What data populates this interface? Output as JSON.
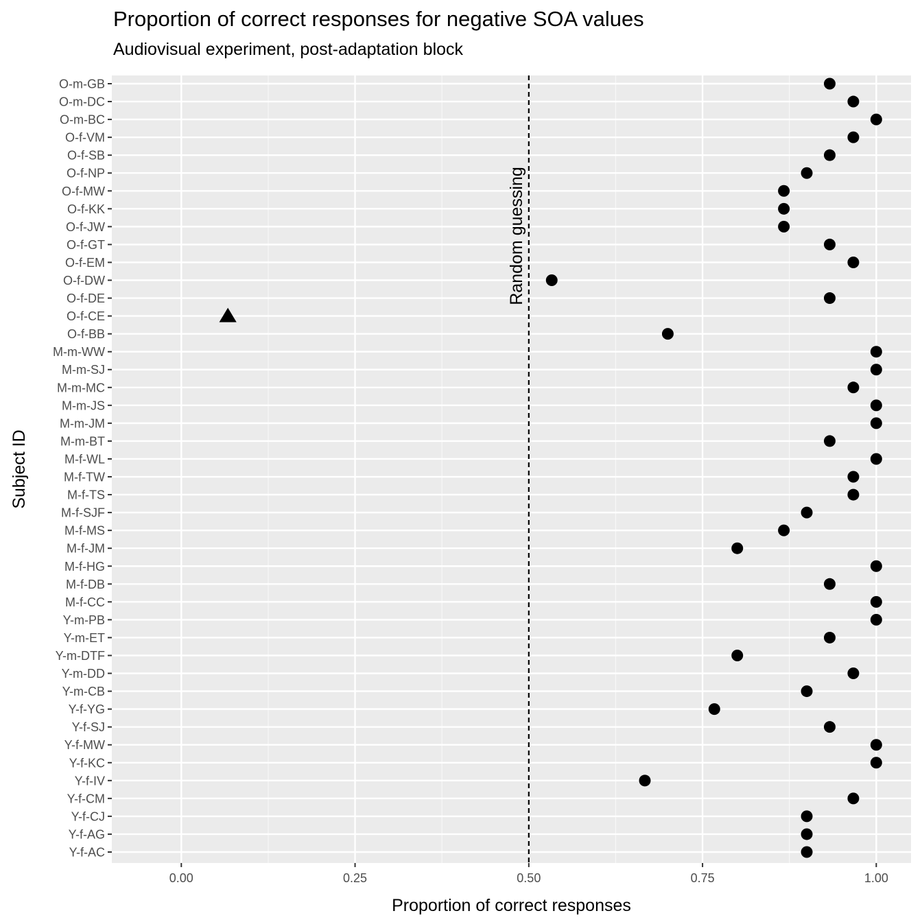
{
  "chart_data": {
    "type": "scatter",
    "title": "Proportion of correct responses for negative SOA values",
    "subtitle": "Audiovisual experiment, post-adaptation block",
    "xlabel": "Proportion of correct responses",
    "ylabel": "Subject ID",
    "xlim": [
      -0.1,
      1.05
    ],
    "x_ticks": [
      "0.00",
      "0.25",
      "0.50",
      "0.75",
      "1.00"
    ],
    "grid": true,
    "reference_line": {
      "x": 0.5,
      "style": "dashed",
      "label": "Random guessing"
    },
    "categories": [
      "O-m-GB",
      "O-m-DC",
      "O-m-BC",
      "O-f-VM",
      "O-f-SB",
      "O-f-NP",
      "O-f-MW",
      "O-f-KK",
      "O-f-JW",
      "O-f-GT",
      "O-f-EM",
      "O-f-DW",
      "O-f-DE",
      "O-f-CE",
      "O-f-BB",
      "M-m-WW",
      "M-m-SJ",
      "M-m-MC",
      "M-m-JS",
      "M-m-JM",
      "M-m-BT",
      "M-f-WL",
      "M-f-TW",
      "M-f-TS",
      "M-f-SJF",
      "M-f-MS",
      "M-f-JM",
      "M-f-HG",
      "M-f-DB",
      "M-f-CC",
      "Y-m-PB",
      "Y-m-ET",
      "Y-m-DTF",
      "Y-m-DD",
      "Y-m-CB",
      "Y-f-YG",
      "Y-f-SJ",
      "Y-f-MW",
      "Y-f-KC",
      "Y-f-IV",
      "Y-f-CM",
      "Y-f-CJ",
      "Y-f-AG",
      "Y-f-AC"
    ],
    "values": [
      0.933,
      0.967,
      1.0,
      0.967,
      0.933,
      0.9,
      0.867,
      0.867,
      0.867,
      0.933,
      0.967,
      0.533,
      0.933,
      0.067,
      0.7,
      1.0,
      1.0,
      0.967,
      1.0,
      1.0,
      0.933,
      1.0,
      0.967,
      0.967,
      0.9,
      0.867,
      0.8,
      1.0,
      0.933,
      1.0,
      1.0,
      0.933,
      0.8,
      0.967,
      0.9,
      0.767,
      0.933,
      1.0,
      1.0,
      0.667,
      0.967,
      0.9,
      0.9,
      0.9
    ],
    "shapes": [
      "circle",
      "circle",
      "circle",
      "circle",
      "circle",
      "circle",
      "circle",
      "circle",
      "circle",
      "circle",
      "circle",
      "circle",
      "circle",
      "triangle",
      "circle",
      "circle",
      "circle",
      "circle",
      "circle",
      "circle",
      "circle",
      "circle",
      "circle",
      "circle",
      "circle",
      "circle",
      "circle",
      "circle",
      "circle",
      "circle",
      "circle",
      "circle",
      "circle",
      "circle",
      "circle",
      "circle",
      "circle",
      "circle",
      "circle",
      "circle",
      "circle",
      "circle",
      "circle",
      "circle"
    ],
    "colors": {
      "panel": "#ebebeb",
      "grid_major": "#ffffff",
      "grid_minor": "#f7f7f7",
      "point": "#000000",
      "tick_text": "#4d4d4d"
    }
  }
}
